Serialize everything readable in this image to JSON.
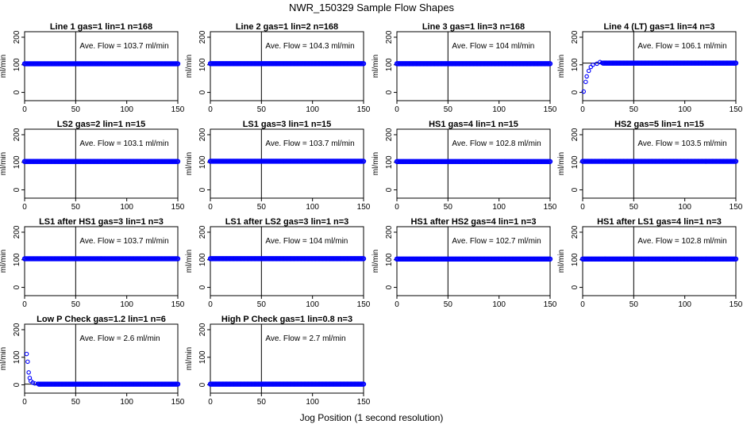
{
  "title": "NWR_150329  Sample Flow Shapes",
  "xlabel": "Jog Position (1 second resolution)",
  "ylabel": "ml/min",
  "colors": {
    "points": "#0000ff",
    "axes": "#000000"
  },
  "annotation_unit": "ml/min",
  "annotation_prefix": "Ave. Flow =",
  "x_ticks": [
    "0",
    "50",
    "100",
    "150"
  ],
  "y_ticks": [
    "0",
    "100",
    "200"
  ],
  "chart_data": [
    {
      "type": "scatter",
      "title": "Line 1 gas=1 lin=1 n=168",
      "ave_flow": "103.7",
      "xlim": [
        0,
        150
      ],
      "ylim": [
        -30,
        220
      ],
      "vline_x": 50,
      "hline_y": 103.7,
      "shape": "flat",
      "level": 103.7
    },
    {
      "type": "scatter",
      "title": "Line 2 gas=1 lin=2 n=168",
      "ave_flow": "104.3",
      "xlim": [
        0,
        150
      ],
      "ylim": [
        -30,
        220
      ],
      "vline_x": 50,
      "hline_y": 104.3,
      "shape": "flat",
      "level": 104.3
    },
    {
      "type": "scatter",
      "title": "Line 3 gas=1 lin=3 n=168",
      "ave_flow": "104",
      "xlim": [
        0,
        150
      ],
      "ylim": [
        -30,
        220
      ],
      "vline_x": 50,
      "hline_y": 104,
      "shape": "flat",
      "level": 104
    },
    {
      "type": "scatter",
      "title": "Line 4 (LT) gas=1 lin=4 n=3",
      "ave_flow": "106.1",
      "xlim": [
        0,
        150
      ],
      "ylim": [
        -30,
        220
      ],
      "vline_x": 50,
      "hline_y": 106.1,
      "shape": "ramp",
      "level": 106.1,
      "early_points": [
        [
          1,
          3
        ],
        [
          3,
          38
        ],
        [
          4,
          58
        ],
        [
          6,
          78
        ],
        [
          8,
          92
        ],
        [
          10,
          100
        ],
        [
          14,
          104
        ],
        [
          17,
          110
        ],
        [
          19,
          107
        ]
      ]
    },
    {
      "type": "scatter",
      "title": "LS2 gas=2 lin=1 n=15",
      "ave_flow": "103.1",
      "xlim": [
        0,
        150
      ],
      "ylim": [
        -30,
        220
      ],
      "vline_x": 50,
      "hline_y": 103.1,
      "shape": "flat",
      "level": 103.1
    },
    {
      "type": "scatter",
      "title": "LS1 gas=3 lin=1 n=15",
      "ave_flow": "103.7",
      "xlim": [
        0,
        150
      ],
      "ylim": [
        -30,
        220
      ],
      "vline_x": 50,
      "hline_y": 103.7,
      "shape": "flat",
      "level": 103.7
    },
    {
      "type": "scatter",
      "title": "HS1 gas=4 lin=1 n=15",
      "ave_flow": "102.8",
      "xlim": [
        0,
        150
      ],
      "ylim": [
        -30,
        220
      ],
      "vline_x": 50,
      "hline_y": 102.8,
      "shape": "flat",
      "level": 102.8
    },
    {
      "type": "scatter",
      "title": "HS2 gas=5 lin=1 n=15",
      "ave_flow": "103.5",
      "xlim": [
        0,
        150
      ],
      "ylim": [
        -30,
        220
      ],
      "vline_x": 50,
      "hline_y": 103.5,
      "shape": "flat",
      "level": 103.5
    },
    {
      "type": "scatter",
      "title": "LS1 after HS1 gas=3 lin=1 n=3",
      "ave_flow": "103.7",
      "xlim": [
        0,
        150
      ],
      "ylim": [
        -30,
        220
      ],
      "vline_x": 50,
      "hline_y": 103.7,
      "shape": "flat",
      "level": 103.7
    },
    {
      "type": "scatter",
      "title": "LS1 after LS2 gas=3 lin=1 n=3",
      "ave_flow": "104",
      "xlim": [
        0,
        150
      ],
      "ylim": [
        -30,
        220
      ],
      "vline_x": 50,
      "hline_y": 104,
      "shape": "flat",
      "level": 104
    },
    {
      "type": "scatter",
      "title": "HS1 after HS2 gas=4 lin=1 n=3",
      "ave_flow": "102.7",
      "xlim": [
        0,
        150
      ],
      "ylim": [
        -30,
        220
      ],
      "vline_x": 50,
      "hline_y": 102.7,
      "shape": "flat",
      "level": 102.7
    },
    {
      "type": "scatter",
      "title": "HS1 after LS1 gas=4 lin=1 n=3",
      "ave_flow": "102.8",
      "xlim": [
        0,
        150
      ],
      "ylim": [
        -30,
        220
      ],
      "vline_x": 50,
      "hline_y": 102.8,
      "shape": "flat",
      "level": 102.8
    },
    {
      "type": "scatter",
      "title": "Low P Check gas=1.2 lin=1 n=6",
      "ave_flow": "2.6",
      "xlim": [
        0,
        150
      ],
      "ylim": [
        -30,
        220
      ],
      "vline_x": 50,
      "hline_y": 2.6,
      "shape": "decay",
      "level": 2.6,
      "early_points": [
        [
          2,
          112
        ],
        [
          3,
          84
        ],
        [
          4,
          45
        ],
        [
          5,
          25
        ],
        [
          6,
          14
        ],
        [
          8,
          8
        ],
        [
          10,
          5
        ],
        [
          13,
          4
        ]
      ]
    },
    {
      "type": "scatter",
      "title": "High P Check gas=1 lin=0.8 n=3",
      "ave_flow": "2.7",
      "xlim": [
        0,
        150
      ],
      "ylim": [
        -30,
        220
      ],
      "vline_x": 50,
      "hline_y": 2.7,
      "shape": "flat",
      "level": 2.7
    }
  ]
}
